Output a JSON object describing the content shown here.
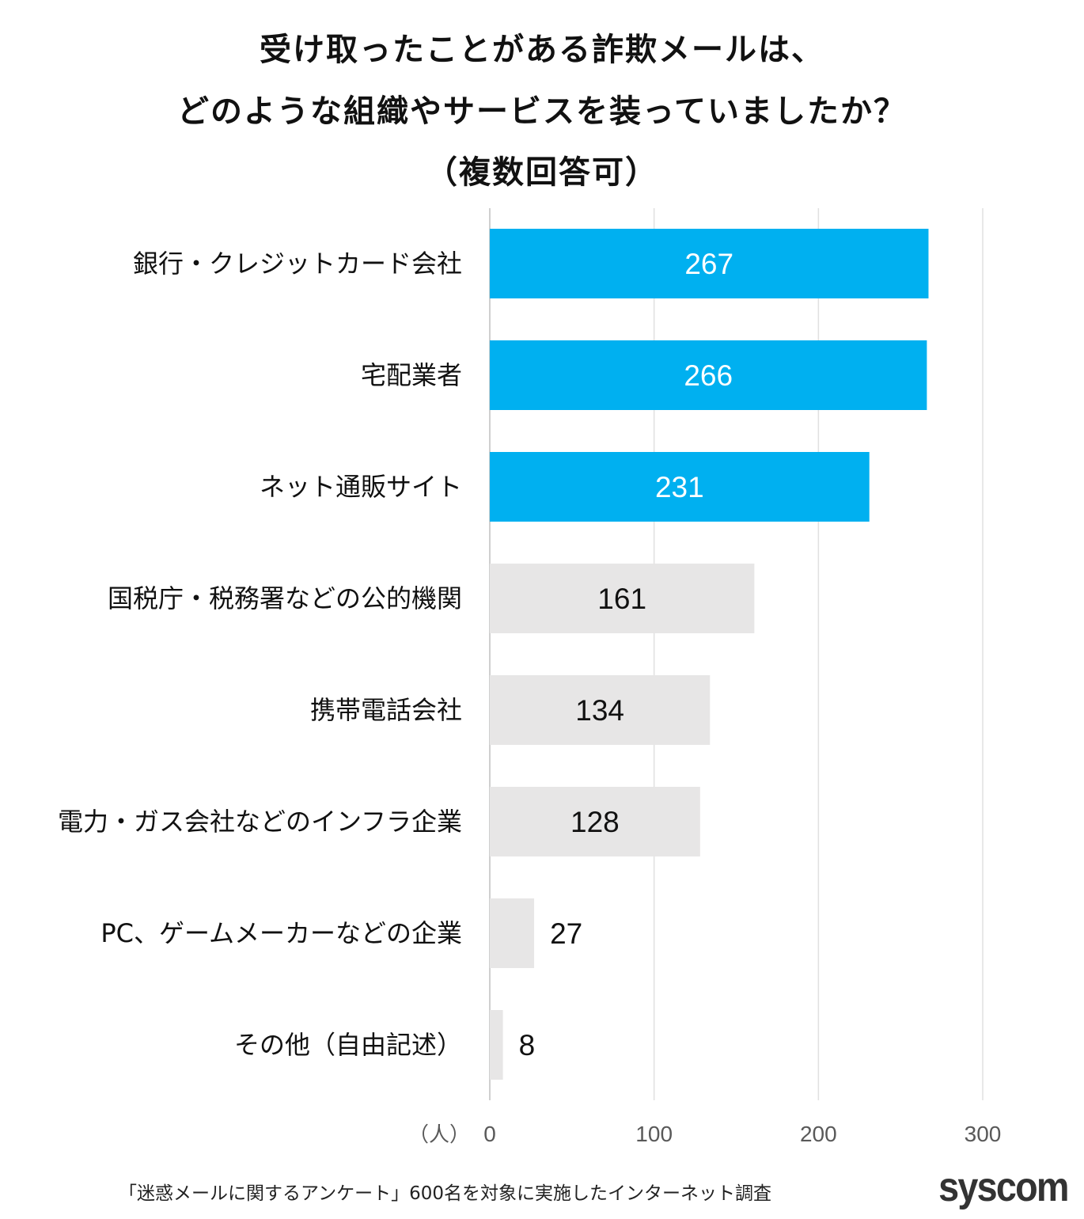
{
  "chart_data": {
    "type": "bar",
    "orientation": "horizontal",
    "title": [
      "受け取ったことがある詐欺メールは、",
      "どのような組織やサービスを装っていましたか？",
      "（複数回答可）"
    ],
    "categories": [
      "銀行・クレジットカード会社",
      "宅配業者",
      "ネット通販サイト",
      "国税庁・税務署などの公的機関",
      "携帯電話会社",
      "電力・ガス会社などのインフラ企業",
      "PC、ゲームメーカーなどの企業",
      "その他（自由記述）"
    ],
    "values": [
      267,
      266,
      231,
      161,
      134,
      128,
      27,
      8
    ],
    "highlight_count": 3,
    "colors": {
      "highlight": "#00B0F0",
      "other": "#E7E6E6",
      "grid": "#E0E0E0",
      "tick": "#595959"
    },
    "xlabel": "（人）",
    "xlim": [
      0,
      300
    ],
    "xticks": [
      0,
      100,
      200,
      300
    ],
    "grid": true
  },
  "footer": {
    "source": "「迷惑メールに関するアンケート」600名を対象に実施したインターネット調査",
    "logo": "syscom"
  }
}
